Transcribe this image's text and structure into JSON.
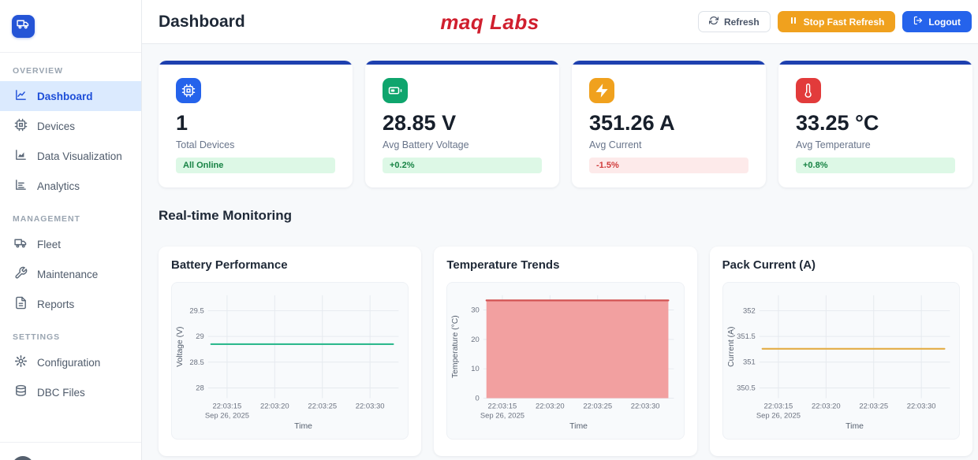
{
  "header": {
    "title": "Dashboard",
    "logo_text": "maq Labs",
    "refresh_label": "Refresh",
    "stop_fast_refresh_label": "Stop Fast Refresh",
    "logout_label": "Logout"
  },
  "sidebar": {
    "sections": [
      {
        "label": "OVERVIEW",
        "items": [
          {
            "label": "Dashboard",
            "active": true
          },
          {
            "label": "Devices",
            "active": false
          },
          {
            "label": "Data Visualization",
            "active": false
          },
          {
            "label": "Analytics",
            "active": false
          }
        ]
      },
      {
        "label": "MANAGEMENT",
        "items": [
          {
            "label": "Fleet",
            "active": false
          },
          {
            "label": "Maintenance",
            "active": false
          },
          {
            "label": "Reports",
            "active": false
          }
        ]
      },
      {
        "label": "SETTINGS",
        "items": [
          {
            "label": "Configuration",
            "active": false
          },
          {
            "label": "DBC Files",
            "active": false
          }
        ]
      }
    ]
  },
  "stats": [
    {
      "icon": "cpu-icon",
      "icon_bg": "#2563eb",
      "value": "1",
      "label": "Total Devices",
      "badge": {
        "text": "All Online",
        "type": "positive"
      }
    },
    {
      "icon": "battery-icon",
      "icon_bg": "#0fa56d",
      "value": "28.85 V",
      "label": "Avg Battery Voltage",
      "badge": {
        "text": "+0.2%",
        "type": "positive"
      }
    },
    {
      "icon": "zap-icon",
      "icon_bg": "#f0a11e",
      "value": "351.26 A",
      "label": "Avg Current",
      "badge": {
        "text": "-1.5%",
        "type": "negative"
      }
    },
    {
      "icon": "thermometer-icon",
      "icon_bg": "#e23b3b",
      "value": "33.25 °C",
      "label": "Avg Temperature",
      "badge": {
        "text": "+0.8%",
        "type": "positive"
      }
    }
  ],
  "monitoring_title": "Real-time Monitoring",
  "chart_data": [
    {
      "type": "line",
      "title": "Battery Performance",
      "xlabel": "Time",
      "ylabel": "Voltage (V)",
      "x_tick_labels": [
        "22:03:15",
        "22:03:20",
        "22:03:25",
        "22:03:30"
      ],
      "x_date_label": "Sep 26, 2025",
      "x_range": [
        "22:03:13",
        "22:03:33"
      ],
      "y_ticks": [
        28,
        28.5,
        29,
        29.5
      ],
      "ylim": [
        27.8,
        29.8
      ],
      "values": [
        28.85,
        28.85,
        28.85,
        28.85,
        28.85
      ],
      "line_color": "#2fb98e",
      "fill": false,
      "grid": true,
      "legend": "none"
    },
    {
      "type": "area",
      "title": "Temperature Trends",
      "xlabel": "Time",
      "ylabel": "Temperature (°C)",
      "x_tick_labels": [
        "22:03:15",
        "22:03:20",
        "22:03:25",
        "22:03:30"
      ],
      "x_date_label": "Sep 26, 2025",
      "x_range": [
        "22:03:13",
        "22:03:33"
      ],
      "y_ticks": [
        0,
        10,
        20,
        30
      ],
      "ylim": [
        0,
        35
      ],
      "values": [
        33.25,
        33.25,
        33.25,
        33.25,
        33.25
      ],
      "line_color": "#d25252",
      "fill": true,
      "fill_color": "#f2a0a0",
      "grid": true,
      "legend": "none"
    },
    {
      "type": "line",
      "title": "Pack Current (A)",
      "xlabel": "Time",
      "ylabel": "Current (A)",
      "x_tick_labels": [
        "22:03:15",
        "22:03:20",
        "22:03:25",
        "22:03:30"
      ],
      "x_date_label": "Sep 26, 2025",
      "x_range": [
        "22:03:13",
        "22:03:33"
      ],
      "y_ticks": [
        350.5,
        351,
        351.5,
        352
      ],
      "ylim": [
        350.3,
        352.3
      ],
      "values": [
        351.26,
        351.26,
        351.26,
        351.26,
        351.26
      ],
      "line_color": "#e3ad45",
      "fill": false,
      "grid": true,
      "legend": "none"
    }
  ]
}
